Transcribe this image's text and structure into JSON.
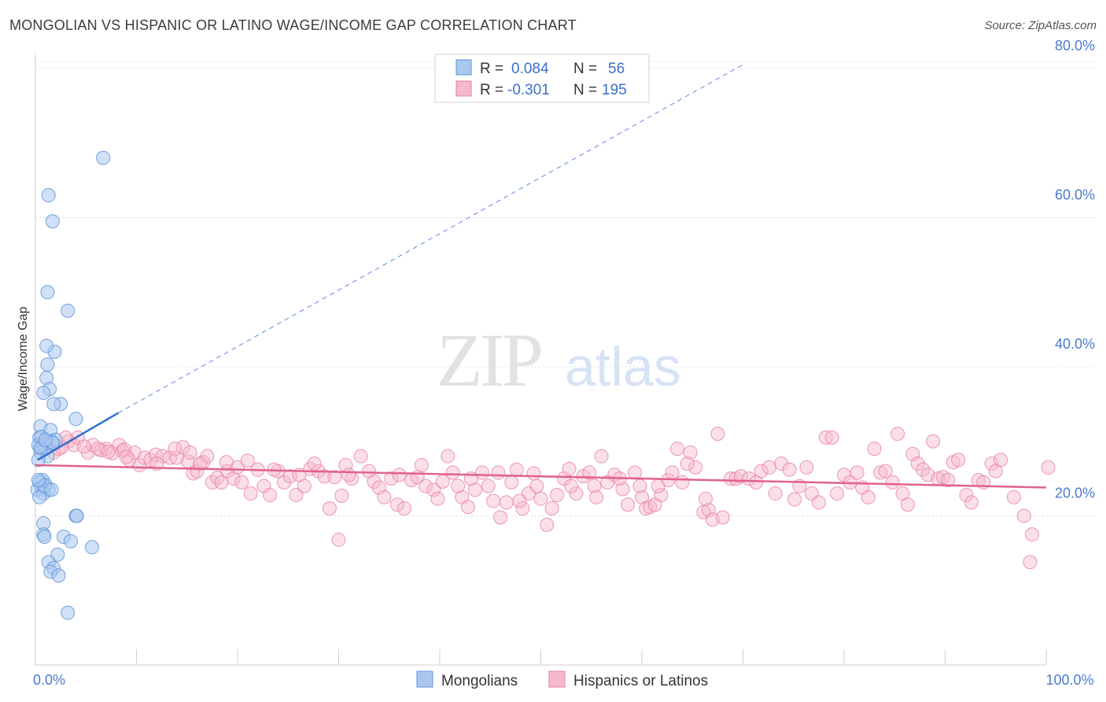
{
  "title": "MONGOLIAN VS HISPANIC OR LATINO WAGE/INCOME GAP CORRELATION CHART",
  "source": "Source: ZipAtlas.com",
  "watermark": {
    "zip": "ZIP",
    "atlas": "atlas"
  },
  "colors": {
    "mongolian_fill": "#a9c8f0",
    "mongolian_stroke": "#5e93d8",
    "mongolian_line": "#2f6fd1",
    "hispanic_fill": "#f7b8cb",
    "hispanic_stroke": "#e77fa1",
    "hispanic_line": "#e0628f",
    "tick_text": "#4b7bd0",
    "grid": "#dcdcdc"
  },
  "chart_data": {
    "type": "scatter",
    "title": "MONGOLIAN VS HISPANIC OR LATINO WAGE/INCOME GAP CORRELATION CHART",
    "xlabel": "",
    "ylabel": "Wage/Income Gap",
    "xlim": [
      0,
      100
    ],
    "ylim": [
      0,
      82
    ],
    "x_ticks": [
      0,
      10,
      20,
      30,
      40,
      50,
      60,
      70,
      80,
      90,
      100
    ],
    "x_tick_labels": [
      {
        "value": 0,
        "label": "0.0%"
      },
      {
        "value": 100,
        "label": "100.0%"
      }
    ],
    "y_ticks": [
      {
        "value": 20,
        "label": "20.0%"
      },
      {
        "value": 40,
        "label": "40.0%"
      },
      {
        "value": 60,
        "label": "60.0%"
      },
      {
        "value": 80,
        "label": "80.0%"
      }
    ],
    "grid": "horizontal dashed",
    "legend": {
      "placement": "top-center",
      "rows": [
        {
          "series": "Mongolians",
          "r_label": "R =",
          "r_value": "0.084",
          "n_label": "N =",
          "n_value": "56"
        },
        {
          "series": "Hispanics or Latinos",
          "r_label": "R =",
          "r_value": "-0.301",
          "n_label": "N =",
          "n_value": "195"
        }
      ]
    },
    "bottom_legend": [
      "Mongolians",
      "Hispanics or Latinos"
    ],
    "series": [
      {
        "name": "Mongolians",
        "trend_solid": [
          [
            0.2,
            27.5
          ],
          [
            8.2,
            33.8
          ]
        ],
        "trend_dashed": [
          [
            8.2,
            33.8
          ],
          [
            70,
            80.5
          ]
        ],
        "points": [
          [
            6.7,
            68.0
          ],
          [
            1.3,
            63.0
          ],
          [
            1.7,
            59.5
          ],
          [
            1.2,
            50.0
          ],
          [
            3.2,
            47.5
          ],
          [
            1.9,
            42.0
          ],
          [
            1.1,
            42.8
          ],
          [
            1.2,
            40.3
          ],
          [
            1.1,
            38.5
          ],
          [
            1.4,
            37.0
          ],
          [
            0.8,
            36.5
          ],
          [
            2.5,
            35.0
          ],
          [
            1.8,
            35.0
          ],
          [
            4.0,
            33.0
          ],
          [
            0.5,
            32.0
          ],
          [
            1.5,
            31.5
          ],
          [
            0.4,
            30.5
          ],
          [
            0.9,
            30.0
          ],
          [
            1.3,
            30.0
          ],
          [
            0.3,
            29.5
          ],
          [
            0.6,
            29.0
          ],
          [
            1.0,
            29.0
          ],
          [
            1.6,
            30.0
          ],
          [
            2.0,
            30.2
          ],
          [
            0.5,
            28.5
          ],
          [
            1.2,
            28.0
          ],
          [
            0.3,
            27.5
          ],
          [
            0.7,
            24.8
          ],
          [
            0.4,
            24.5
          ],
          [
            1.0,
            24.2
          ],
          [
            0.6,
            23.8
          ],
          [
            1.3,
            23.5
          ],
          [
            0.2,
            23.5
          ],
          [
            0.8,
            23.0
          ],
          [
            0.4,
            22.5
          ],
          [
            0.9,
            24.0
          ],
          [
            1.6,
            23.5
          ],
          [
            0.3,
            24.8
          ],
          [
            0.8,
            19.0
          ],
          [
            0.8,
            17.5
          ],
          [
            0.9,
            17.2
          ],
          [
            2.8,
            17.2
          ],
          [
            3.5,
            16.6
          ],
          [
            4.0,
            20.0
          ],
          [
            4.1,
            20.0
          ],
          [
            5.6,
            15.8
          ],
          [
            2.2,
            14.8
          ],
          [
            1.3,
            13.8
          ],
          [
            1.8,
            13.0
          ],
          [
            1.5,
            12.5
          ],
          [
            2.3,
            12.0
          ],
          [
            3.2,
            7.0
          ],
          [
            0.5,
            29.2
          ],
          [
            1.7,
            29.8
          ],
          [
            0.6,
            30.6
          ],
          [
            1.0,
            30.2
          ]
        ]
      },
      {
        "name": "Hispanics or Latinos",
        "trend_solid": [
          [
            0,
            26.8
          ],
          [
            100,
            23.8
          ]
        ],
        "points": [
          [
            1.3,
            30.0
          ],
          [
            1.8,
            28.5
          ],
          [
            2.3,
            29.0
          ],
          [
            3.3,
            30.0
          ],
          [
            3.8,
            29.5
          ],
          [
            4.2,
            30.5
          ],
          [
            5.2,
            28.5
          ],
          [
            5.7,
            29.5
          ],
          [
            6.5,
            28.8
          ],
          [
            7.0,
            29.0
          ],
          [
            7.6,
            28.4
          ],
          [
            8.3,
            29.5
          ],
          [
            8.6,
            28.7
          ],
          [
            9.3,
            27.5
          ],
          [
            9.8,
            28.5
          ],
          [
            10.3,
            26.8
          ],
          [
            10.8,
            27.8
          ],
          [
            11.4,
            27.5
          ],
          [
            11.9,
            28.2
          ],
          [
            12.6,
            28.0
          ],
          [
            13.3,
            27.8
          ],
          [
            14.0,
            27.8
          ],
          [
            14.6,
            29.2
          ],
          [
            15.1,
            27.3
          ],
          [
            15.6,
            25.7
          ],
          [
            16.0,
            26.0
          ],
          [
            16.6,
            27.2
          ],
          [
            17.0,
            28.0
          ],
          [
            17.5,
            24.5
          ],
          [
            18.0,
            25.1
          ],
          [
            18.4,
            24.5
          ],
          [
            19.0,
            26.0
          ],
          [
            19.6,
            25.0
          ],
          [
            20.0,
            26.5
          ],
          [
            20.4,
            24.5
          ],
          [
            21.3,
            23.0
          ],
          [
            22.0,
            26.2
          ],
          [
            22.6,
            24.0
          ],
          [
            23.2,
            22.8
          ],
          [
            24.0,
            26.0
          ],
          [
            24.6,
            24.5
          ],
          [
            25.2,
            25.3
          ],
          [
            25.8,
            22.8
          ],
          [
            26.6,
            24.0
          ],
          [
            27.2,
            26.3
          ],
          [
            28.0,
            26.0
          ],
          [
            28.6,
            25.3
          ],
          [
            29.1,
            21.0
          ],
          [
            29.6,
            25.2
          ],
          [
            30.3,
            22.7
          ],
          [
            30.7,
            26.8
          ],
          [
            31.3,
            25.0
          ],
          [
            32.2,
            28.0
          ],
          [
            33.0,
            26.0
          ],
          [
            33.5,
            24.6
          ],
          [
            34.0,
            23.8
          ],
          [
            34.5,
            22.5
          ],
          [
            35.2,
            25.0
          ],
          [
            35.8,
            21.5
          ],
          [
            36.5,
            21.0
          ],
          [
            37.2,
            24.8
          ],
          [
            37.8,
            25.2
          ],
          [
            38.6,
            24.0
          ],
          [
            39.4,
            23.5
          ],
          [
            39.8,
            22.3
          ],
          [
            40.3,
            24.6
          ],
          [
            40.8,
            28.0
          ],
          [
            41.3,
            25.8
          ],
          [
            42.2,
            22.5
          ],
          [
            42.8,
            21.2
          ],
          [
            43.5,
            23.5
          ],
          [
            44.2,
            25.8
          ],
          [
            44.8,
            24.0
          ],
          [
            45.3,
            22.0
          ],
          [
            46.0,
            19.8
          ],
          [
            46.6,
            21.8
          ],
          [
            47.1,
            24.5
          ],
          [
            47.6,
            26.2
          ],
          [
            48.2,
            21.0
          ],
          [
            48.8,
            23.0
          ],
          [
            49.3,
            25.7
          ],
          [
            50.0,
            22.3
          ],
          [
            50.6,
            18.8
          ],
          [
            51.1,
            21.0
          ],
          [
            51.6,
            22.8
          ],
          [
            52.3,
            25.0
          ],
          [
            52.8,
            26.3
          ],
          [
            53.5,
            23.0
          ],
          [
            54.2,
            25.3
          ],
          [
            54.8,
            25.8
          ],
          [
            55.3,
            24.0
          ],
          [
            56.0,
            28.0
          ],
          [
            56.6,
            24.5
          ],
          [
            57.3,
            25.5
          ],
          [
            58.1,
            23.6
          ],
          [
            58.6,
            21.5
          ],
          [
            59.3,
            25.8
          ],
          [
            60.0,
            22.5
          ],
          [
            60.4,
            21.0
          ],
          [
            60.8,
            21.2
          ],
          [
            61.3,
            21.5
          ],
          [
            61.9,
            22.8
          ],
          [
            62.6,
            24.8
          ],
          [
            63.0,
            25.8
          ],
          [
            63.5,
            29.0
          ],
          [
            64.0,
            24.5
          ],
          [
            64.8,
            28.5
          ],
          [
            65.3,
            26.5
          ],
          [
            66.1,
            20.5
          ],
          [
            66.6,
            20.8
          ],
          [
            67.0,
            19.5
          ],
          [
            67.5,
            31.0
          ],
          [
            68.0,
            19.8
          ],
          [
            68.8,
            25.0
          ],
          [
            69.3,
            25.0
          ],
          [
            69.8,
            25.3
          ],
          [
            70.6,
            25.0
          ],
          [
            71.3,
            24.5
          ],
          [
            71.8,
            26.0
          ],
          [
            72.6,
            26.5
          ],
          [
            73.2,
            23.0
          ],
          [
            73.8,
            27.0
          ],
          [
            74.6,
            26.2
          ],
          [
            75.1,
            22.2
          ],
          [
            75.6,
            24.0
          ],
          [
            76.3,
            26.5
          ],
          [
            76.8,
            23.0
          ],
          [
            77.5,
            21.8
          ],
          [
            78.2,
            30.5
          ],
          [
            78.8,
            30.5
          ],
          [
            79.3,
            23.0
          ],
          [
            80.0,
            25.5
          ],
          [
            80.6,
            24.5
          ],
          [
            81.3,
            25.8
          ],
          [
            81.8,
            23.8
          ],
          [
            82.4,
            22.5
          ],
          [
            83.0,
            29.0
          ],
          [
            83.6,
            25.8
          ],
          [
            84.1,
            26.0
          ],
          [
            84.8,
            24.5
          ],
          [
            85.3,
            31.0
          ],
          [
            85.8,
            23.0
          ],
          [
            86.3,
            21.5
          ],
          [
            86.8,
            28.3
          ],
          [
            87.3,
            27.0
          ],
          [
            87.8,
            26.2
          ],
          [
            88.3,
            25.5
          ],
          [
            88.8,
            30.0
          ],
          [
            89.3,
            25.0
          ],
          [
            89.8,
            25.2
          ],
          [
            90.3,
            24.8
          ],
          [
            90.8,
            27.2
          ],
          [
            91.3,
            27.5
          ],
          [
            92.1,
            22.8
          ],
          [
            92.6,
            21.8
          ],
          [
            93.3,
            24.8
          ],
          [
            93.8,
            24.5
          ],
          [
            94.6,
            27.0
          ],
          [
            95.0,
            26.0
          ],
          [
            95.5,
            27.5
          ],
          [
            96.8,
            22.5
          ],
          [
            97.8,
            20.0
          ],
          [
            98.6,
            17.5
          ],
          [
            98.4,
            13.8
          ],
          [
            100.2,
            26.5
          ],
          [
            3.0,
            30.5
          ],
          [
            6.2,
            29.0
          ],
          [
            8.8,
            28.9
          ],
          [
            2.6,
            29.2
          ],
          [
            4.8,
            29.3
          ],
          [
            7.2,
            28.6
          ],
          [
            9.0,
            27.9
          ],
          [
            12.0,
            27.0
          ],
          [
            13.8,
            29.0
          ],
          [
            15.3,
            28.5
          ],
          [
            16.3,
            27.0
          ],
          [
            18.9,
            27.2
          ],
          [
            21.0,
            27.4
          ],
          [
            23.6,
            26.2
          ],
          [
            26.1,
            25.5
          ],
          [
            27.6,
            27.0
          ],
          [
            31.0,
            25.5
          ],
          [
            36.0,
            25.5
          ],
          [
            38.2,
            26.8
          ],
          [
            41.8,
            24.0
          ],
          [
            43.1,
            25.0
          ],
          [
            45.8,
            25.8
          ],
          [
            47.9,
            22.0
          ],
          [
            49.6,
            24.0
          ],
          [
            53.0,
            24.0
          ],
          [
            55.5,
            22.5
          ],
          [
            57.8,
            25.0
          ],
          [
            59.8,
            24.0
          ],
          [
            61.6,
            24.0
          ],
          [
            64.5,
            27.0
          ],
          [
            66.3,
            22.3
          ],
          [
            30.0,
            16.8
          ]
        ]
      }
    ]
  }
}
